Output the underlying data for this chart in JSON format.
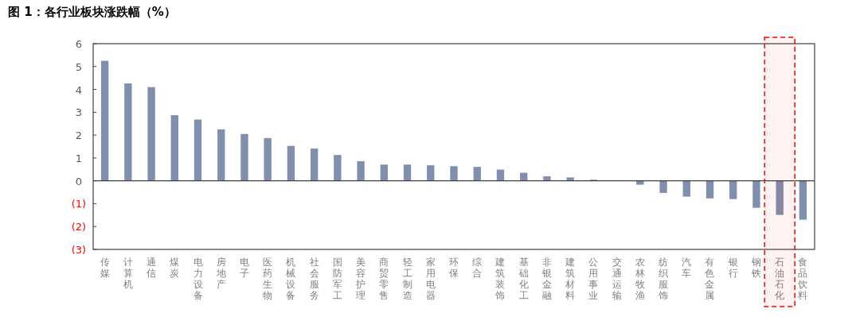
{
  "chart_data": {
    "type": "bar",
    "title": "图 1：各行业板块涨跌幅（%）",
    "categories": [
      "传媒",
      "计算机",
      "通信",
      "煤炭",
      "电力设备",
      "房地产",
      "电子",
      "医药生物",
      "机械设备",
      "社会服务",
      "国防军工",
      "美容护理",
      "商贸零售",
      "轻工制造",
      "家用电器",
      "环保",
      "综合",
      "建筑装饰",
      "基础化工",
      "非银金融",
      "建筑材料",
      "公用事业",
      "交通运输",
      "农林牧渔",
      "纺织服饰",
      "汽车",
      "有色金属",
      "银行",
      "钢铁",
      "石油石化",
      "食品饮料"
    ],
    "series": [
      {
        "color": "#7f8fad",
        "values": [
          5.25,
          4.26,
          4.1,
          2.87,
          2.68,
          2.25,
          2.05,
          1.87,
          1.53,
          1.41,
          1.13,
          0.86,
          0.71,
          0.71,
          0.68,
          0.64,
          0.61,
          0.49,
          0.35,
          0.2,
          0.15,
          0.05,
          0,
          -0.17,
          -0.53,
          -0.69,
          -0.77,
          -0.8,
          -1.18,
          -1.49,
          -1.7
        ]
      }
    ],
    "ylim": [
      -3,
      6
    ],
    "yticks": [
      6,
      5,
      4,
      3,
      2,
      1,
      0,
      {
        "value": -1,
        "label": "(1)"
      },
      {
        "value": -2,
        "label": "(2)"
      },
      {
        "value": -3,
        "label": "(3)"
      }
    ],
    "bands": [
      {
        "axis": "x",
        "from": "石油石化",
        "to": "石油石化",
        "color": "#ff0000"
      }
    ]
  }
}
